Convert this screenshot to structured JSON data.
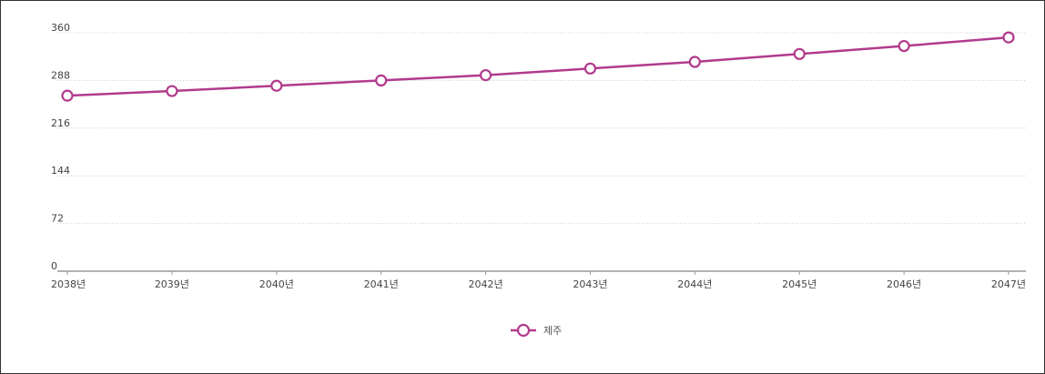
{
  "chart_data": {
    "type": "line",
    "categories": [
      "2038년",
      "2039년",
      "2040년",
      "2041년",
      "2042년",
      "2043년",
      "2044년",
      "2045년",
      "2046년",
      "2047년"
    ],
    "series": [
      {
        "name": "제주",
        "values": [
          265,
          272,
          280,
          288,
          296,
          306,
          316,
          328,
          340,
          353
        ]
      }
    ],
    "ylim": [
      0,
      360
    ],
    "yticks": [
      "0",
      "72",
      "144",
      "216",
      "288",
      "360"
    ],
    "grid": true,
    "legend_position": "bottom-center",
    "colors": {
      "series": "#b23a8c",
      "marker_fill": "#ffffff",
      "grid": "#cccccc",
      "axis": "#999999"
    }
  }
}
